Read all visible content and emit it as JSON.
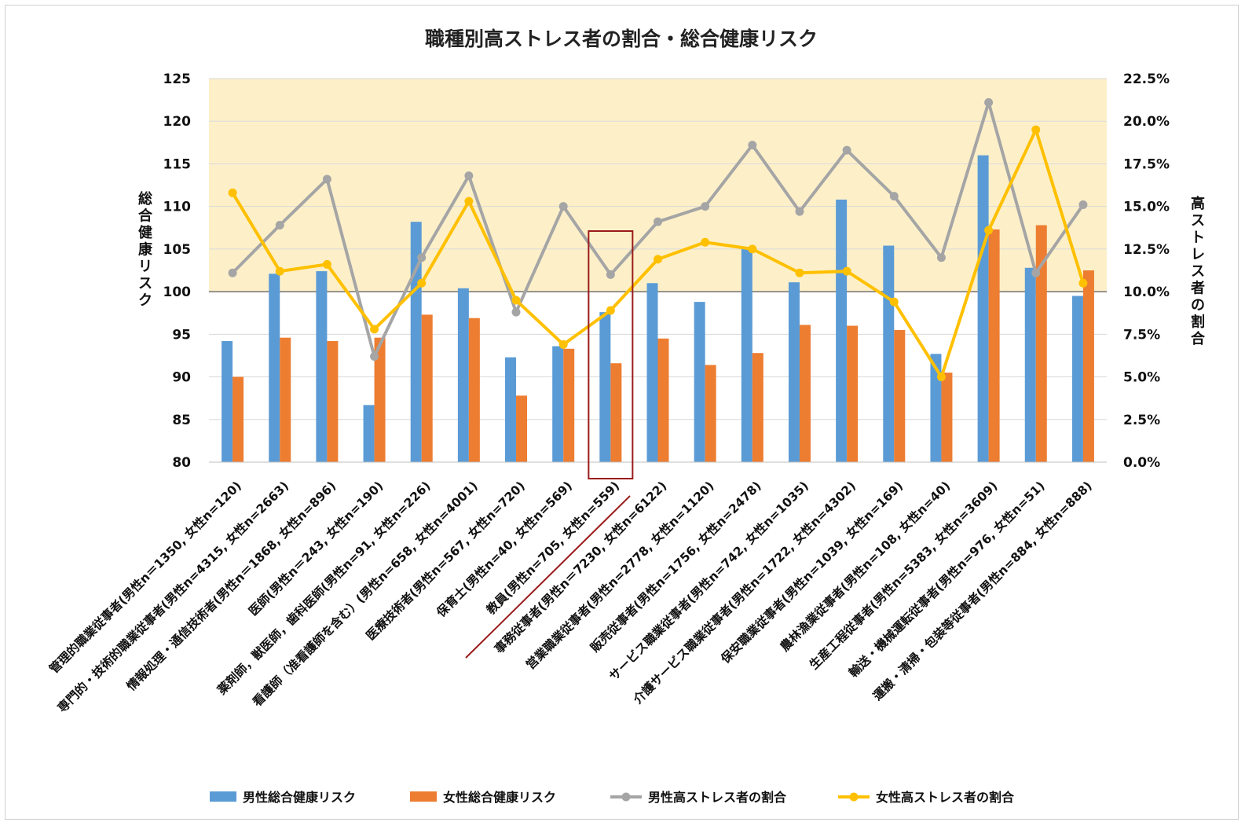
{
  "chart_data": {
    "type": "bar+line",
    "title": "職種別高ストレス者の割合・総合健康リスク",
    "y_left_label": "総合健康リスク",
    "y_right_label": "高ストレス者の割合",
    "y_left_range": [
      80,
      125
    ],
    "y_left_ticks": [
      "125",
      "120",
      "115",
      "110",
      "105",
      "100",
      "95",
      "90",
      "85",
      "80"
    ],
    "y_right_range": [
      0,
      22.5
    ],
    "y_right_ticks": [
      "22.5%",
      "20.0%",
      "17.5%",
      "15.0%",
      "12.5%",
      "10.0%",
      "7.5%",
      "5.0%",
      "2.5%",
      "0.0%"
    ],
    "highlight_band": {
      "from": 100,
      "to": 125,
      "color": "#fdf0c9"
    },
    "highlighted_category_index": 8,
    "categories": [
      "管理的職業従事者(男性n＝1350, 女性n=120)",
      "専門的・技術的職業従事者(男性n=4315, 女性n=2663)",
      "情報処理・通信技術者(男性n＝1868, 女性n=896)",
      "医師(男性n＝243, 女性n=190)",
      "薬剤師，獣医師，歯科医師(男性n=91, 女性n=226)",
      "看護師（准看護師を含む）(男性n=658, 女性n=4001)",
      "医療技術者(男性n=567, 女性n=720)",
      "保育士(男性n=40, 女性n=569)",
      "教員(男性n=705, 女性n=559)",
      "事務従事者(男性n＝7230, 女性n=6122)",
      "営業職業従事者(男性n=2778, 女性n=1120)",
      "販売従事者(男性n=1756, 女性n=2478)",
      "サービス職業従事者(男性n=742, 女性n=1035)",
      "介護サービス職業従事者(男性n=1722, 女性n=4302)",
      "保安職業従事者(男性n=1039, 女性n=169)",
      "農林漁業従事者(男性n=108, 女性n=40)",
      "生産工程従事者(男性n=5383, 女性n=3609)",
      "輸送・機械運転従事者(男性n=976, 女性n=51)",
      "運搬・清掃・包装等従事者(男性n=884, 女性n=888)"
    ],
    "series": [
      {
        "name": "男性総合健康リスク",
        "type": "bar",
        "axis": "left",
        "color": "#5b9bd5",
        "values": [
          94.2,
          102.1,
          102.4,
          86.7,
          108.2,
          100.4,
          92.3,
          93.6,
          97.6,
          101.0,
          98.8,
          105.0,
          101.1,
          110.8,
          105.4,
          92.7,
          116.0,
          102.8,
          99.5
        ]
      },
      {
        "name": "女性総合健康リスク",
        "type": "bar",
        "axis": "left",
        "color": "#ed7d31",
        "values": [
          90.0,
          94.6,
          94.2,
          94.6,
          97.3,
          96.9,
          87.8,
          93.3,
          91.6,
          94.5,
          91.4,
          92.8,
          96.1,
          96.0,
          95.5,
          90.5,
          107.3,
          107.8,
          102.5
        ]
      },
      {
        "name": "男性高ストレス者の割合",
        "type": "line",
        "axis": "right",
        "color": "#a5a5a5",
        "values": [
          11.1,
          13.9,
          16.6,
          6.2,
          12.0,
          16.8,
          8.8,
          15.0,
          11.0,
          14.1,
          15.0,
          18.6,
          14.7,
          18.3,
          15.6,
          12.0,
          21.1,
          11.1,
          15.1
        ]
      },
      {
        "name": "女性高ストレス者の割合",
        "type": "line",
        "axis": "right",
        "color": "#ffc000",
        "values": [
          15.8,
          11.2,
          11.6,
          7.8,
          10.5,
          15.3,
          9.5,
          6.9,
          8.9,
          11.9,
          12.9,
          12.5,
          11.1,
          11.2,
          9.4,
          5.0,
          13.6,
          19.5,
          10.5
        ]
      }
    ],
    "legend_position": "bottom"
  }
}
